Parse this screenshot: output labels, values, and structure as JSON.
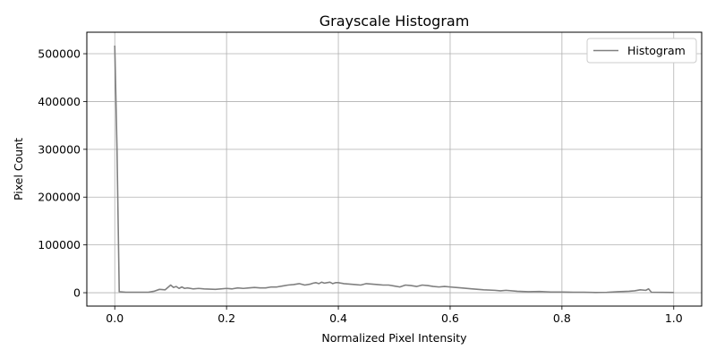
{
  "chart_data": {
    "type": "line",
    "title": "Grayscale Histogram",
    "xlabel": "Normalized Pixel Intensity",
    "ylabel": "Pixel Count",
    "xlim": [
      -0.05,
      1.05
    ],
    "ylim": [
      -28000,
      545000
    ],
    "xticks": [
      0.0,
      0.2,
      0.4,
      0.6,
      0.8,
      1.0
    ],
    "xtick_labels": [
      "0.0",
      "0.2",
      "0.4",
      "0.6",
      "0.8",
      "1.0"
    ],
    "yticks": [
      0,
      100000,
      200000,
      300000,
      400000,
      500000
    ],
    "ytick_labels": [
      "0",
      "100000",
      "200000",
      "300000",
      "400000",
      "500000"
    ],
    "grid": true,
    "legend": "top-right",
    "series": [
      {
        "name": "Histogram",
        "color": "#808080",
        "x": [
          0.0,
          0.004,
          0.008,
          0.02,
          0.04,
          0.06,
          0.07,
          0.08,
          0.09,
          0.1,
          0.105,
          0.11,
          0.115,
          0.12,
          0.125,
          0.13,
          0.14,
          0.15,
          0.16,
          0.18,
          0.2,
          0.21,
          0.22,
          0.23,
          0.24,
          0.25,
          0.26,
          0.27,
          0.28,
          0.29,
          0.3,
          0.31,
          0.32,
          0.33,
          0.34,
          0.35,
          0.355,
          0.36,
          0.365,
          0.37,
          0.375,
          0.38,
          0.385,
          0.39,
          0.395,
          0.4,
          0.41,
          0.42,
          0.43,
          0.44,
          0.45,
          0.46,
          0.47,
          0.48,
          0.49,
          0.5,
          0.51,
          0.52,
          0.53,
          0.54,
          0.55,
          0.56,
          0.57,
          0.58,
          0.59,
          0.6,
          0.62,
          0.64,
          0.66,
          0.68,
          0.69,
          0.7,
          0.72,
          0.74,
          0.76,
          0.78,
          0.8,
          0.82,
          0.84,
          0.86,
          0.88,
          0.9,
          0.92,
          0.93,
          0.94,
          0.95,
          0.955,
          0.96,
          0.97,
          0.98,
          1.0
        ],
        "y": [
          517000,
          300000,
          2000,
          1000,
          1000,
          1000,
          3000,
          7000,
          6000,
          16000,
          11000,
          13000,
          9000,
          12000,
          9000,
          10000,
          8000,
          9000,
          8000,
          7000,
          9000,
          8000,
          10000,
          9000,
          10000,
          11000,
          10000,
          10000,
          12000,
          12000,
          14000,
          16000,
          17000,
          19000,
          16000,
          18000,
          20000,
          21000,
          19000,
          22000,
          20000,
          21000,
          22000,
          19000,
          21000,
          21000,
          19000,
          18000,
          17000,
          16000,
          19000,
          18000,
          17000,
          16000,
          16000,
          14000,
          12000,
          16000,
          15000,
          13000,
          16000,
          15000,
          13000,
          12000,
          13000,
          12000,
          10000,
          8000,
          6000,
          5000,
          4000,
          5000,
          3000,
          2000,
          2500,
          1500,
          1500,
          1000,
          1000,
          500,
          800,
          2000,
          3000,
          4000,
          6000,
          5000,
          8000,
          1000,
          800,
          600,
          500
        ]
      }
    ]
  }
}
